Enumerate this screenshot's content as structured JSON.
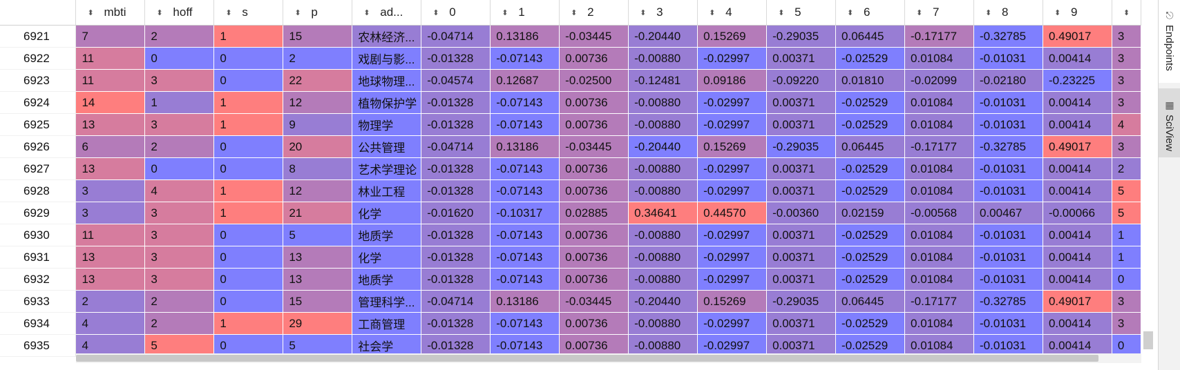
{
  "colors": {
    "red": "#fe7e7e",
    "pink": "#d67c9e",
    "mauve": "#b47bb9",
    "purple": "#987dd4",
    "blue": "#7f7ffe"
  },
  "columns": [
    "mbti",
    "hoff",
    "s",
    "p",
    "ad...",
    "0",
    "1",
    "2",
    "3",
    "4",
    "5",
    "6",
    "7",
    "8",
    "9",
    ""
  ],
  "rows": [
    {
      "index": "6921",
      "cells": [
        [
          "7",
          "mauve"
        ],
        [
          "2",
          "mauve"
        ],
        [
          "1",
          "red"
        ],
        [
          "15",
          "mauve"
        ],
        [
          "农林经济...",
          "purple"
        ],
        [
          "-0.04714",
          "purple"
        ],
        [
          "0.13186",
          "mauve"
        ],
        [
          "-0.03445",
          "mauve"
        ],
        [
          "-0.20440",
          "purple"
        ],
        [
          "0.15269",
          "mauve"
        ],
        [
          "-0.29035",
          "purple"
        ],
        [
          "0.06445",
          "purple"
        ],
        [
          "-0.17177",
          "mauve"
        ],
        [
          "-0.32785",
          "blue"
        ],
        [
          "0.49017",
          "red"
        ],
        [
          "3",
          "mauve"
        ]
      ]
    },
    {
      "index": "6922",
      "cells": [
        [
          "11",
          "pink"
        ],
        [
          "0",
          "blue"
        ],
        [
          "0",
          "blue"
        ],
        [
          "2",
          "blue"
        ],
        [
          "戏剧与影...",
          "blue"
        ],
        [
          "-0.01328",
          "purple"
        ],
        [
          "-0.07143",
          "blue"
        ],
        [
          "0.00736",
          "mauve"
        ],
        [
          "-0.00880",
          "purple"
        ],
        [
          "-0.02997",
          "blue"
        ],
        [
          "0.00371",
          "purple"
        ],
        [
          "-0.02529",
          "blue"
        ],
        [
          "0.01084",
          "purple"
        ],
        [
          "-0.01031",
          "blue"
        ],
        [
          "0.00414",
          "purple"
        ],
        [
          "3",
          "mauve"
        ]
      ]
    },
    {
      "index": "6923",
      "cells": [
        [
          "11",
          "pink"
        ],
        [
          "3",
          "pink"
        ],
        [
          "0",
          "blue"
        ],
        [
          "22",
          "pink"
        ],
        [
          "地球物理...",
          "blue"
        ],
        [
          "-0.04574",
          "purple"
        ],
        [
          "0.12687",
          "mauve"
        ],
        [
          "-0.02500",
          "mauve"
        ],
        [
          "-0.12481",
          "purple"
        ],
        [
          "0.09186",
          "mauve"
        ],
        [
          "-0.09220",
          "purple"
        ],
        [
          "0.01810",
          "purple"
        ],
        [
          "-0.02099",
          "purple"
        ],
        [
          "-0.02180",
          "purple"
        ],
        [
          "-0.23225",
          "blue"
        ],
        [
          "3",
          "mauve"
        ]
      ]
    },
    {
      "index": "6924",
      "cells": [
        [
          "14",
          "red"
        ],
        [
          "1",
          "purple"
        ],
        [
          "1",
          "red"
        ],
        [
          "12",
          "mauve"
        ],
        [
          "植物保护学",
          "blue"
        ],
        [
          "-0.01328",
          "purple"
        ],
        [
          "-0.07143",
          "blue"
        ],
        [
          "0.00736",
          "mauve"
        ],
        [
          "-0.00880",
          "purple"
        ],
        [
          "-0.02997",
          "blue"
        ],
        [
          "0.00371",
          "purple"
        ],
        [
          "-0.02529",
          "blue"
        ],
        [
          "0.01084",
          "purple"
        ],
        [
          "-0.01031",
          "blue"
        ],
        [
          "0.00414",
          "purple"
        ],
        [
          "3",
          "mauve"
        ]
      ]
    },
    {
      "index": "6925",
      "cells": [
        [
          "13",
          "pink"
        ],
        [
          "3",
          "pink"
        ],
        [
          "1",
          "red"
        ],
        [
          "9",
          "purple"
        ],
        [
          "物理学",
          "blue"
        ],
        [
          "-0.01328",
          "purple"
        ],
        [
          "-0.07143",
          "blue"
        ],
        [
          "0.00736",
          "mauve"
        ],
        [
          "-0.00880",
          "purple"
        ],
        [
          "-0.02997",
          "blue"
        ],
        [
          "0.00371",
          "purple"
        ],
        [
          "-0.02529",
          "blue"
        ],
        [
          "0.01084",
          "purple"
        ],
        [
          "-0.01031",
          "blue"
        ],
        [
          "0.00414",
          "purple"
        ],
        [
          "4",
          "pink"
        ]
      ]
    },
    {
      "index": "6926",
      "cells": [
        [
          "6",
          "mauve"
        ],
        [
          "2",
          "mauve"
        ],
        [
          "0",
          "blue"
        ],
        [
          "20",
          "pink"
        ],
        [
          "公共管理",
          "blue"
        ],
        [
          "-0.04714",
          "purple"
        ],
        [
          "0.13186",
          "mauve"
        ],
        [
          "-0.03445",
          "mauve"
        ],
        [
          "-0.20440",
          "blue"
        ],
        [
          "0.15269",
          "mauve"
        ],
        [
          "-0.29035",
          "blue"
        ],
        [
          "0.06445",
          "purple"
        ],
        [
          "-0.17177",
          "purple"
        ],
        [
          "-0.32785",
          "blue"
        ],
        [
          "0.49017",
          "red"
        ],
        [
          "3",
          "mauve"
        ]
      ]
    },
    {
      "index": "6927",
      "cells": [
        [
          "13",
          "pink"
        ],
        [
          "0",
          "blue"
        ],
        [
          "0",
          "blue"
        ],
        [
          "8",
          "purple"
        ],
        [
          "艺术学理论",
          "blue"
        ],
        [
          "-0.01328",
          "purple"
        ],
        [
          "-0.07143",
          "blue"
        ],
        [
          "0.00736",
          "mauve"
        ],
        [
          "-0.00880",
          "purple"
        ],
        [
          "-0.02997",
          "blue"
        ],
        [
          "0.00371",
          "purple"
        ],
        [
          "-0.02529",
          "blue"
        ],
        [
          "0.01084",
          "purple"
        ],
        [
          "-0.01031",
          "blue"
        ],
        [
          "0.00414",
          "purple"
        ],
        [
          "2",
          "purple"
        ]
      ]
    },
    {
      "index": "6928",
      "cells": [
        [
          "3",
          "purple"
        ],
        [
          "4",
          "pink"
        ],
        [
          "1",
          "red"
        ],
        [
          "12",
          "mauve"
        ],
        [
          "林业工程",
          "blue"
        ],
        [
          "-0.01328",
          "purple"
        ],
        [
          "-0.07143",
          "blue"
        ],
        [
          "0.00736",
          "mauve"
        ],
        [
          "-0.00880",
          "purple"
        ],
        [
          "-0.02997",
          "blue"
        ],
        [
          "0.00371",
          "purple"
        ],
        [
          "-0.02529",
          "blue"
        ],
        [
          "0.01084",
          "purple"
        ],
        [
          "-0.01031",
          "blue"
        ],
        [
          "0.00414",
          "purple"
        ],
        [
          "5",
          "red"
        ]
      ]
    },
    {
      "index": "6929",
      "cells": [
        [
          "3",
          "purple"
        ],
        [
          "3",
          "pink"
        ],
        [
          "1",
          "red"
        ],
        [
          "21",
          "pink"
        ],
        [
          "化学",
          "blue"
        ],
        [
          "-0.01620",
          "purple"
        ],
        [
          "-0.10317",
          "blue"
        ],
        [
          "0.02885",
          "mauve"
        ],
        [
          "0.34641",
          "red"
        ],
        [
          "0.44570",
          "red"
        ],
        [
          "-0.00360",
          "purple"
        ],
        [
          "0.02159",
          "purple"
        ],
        [
          "-0.00568",
          "purple"
        ],
        [
          "0.00467",
          "purple"
        ],
        [
          "-0.00066",
          "purple"
        ],
        [
          "5",
          "red"
        ]
      ]
    },
    {
      "index": "6930",
      "cells": [
        [
          "11",
          "pink"
        ],
        [
          "3",
          "pink"
        ],
        [
          "0",
          "blue"
        ],
        [
          "5",
          "blue"
        ],
        [
          "地质学",
          "blue"
        ],
        [
          "-0.01328",
          "purple"
        ],
        [
          "-0.07143",
          "blue"
        ],
        [
          "0.00736",
          "mauve"
        ],
        [
          "-0.00880",
          "purple"
        ],
        [
          "-0.02997",
          "blue"
        ],
        [
          "0.00371",
          "purple"
        ],
        [
          "-0.02529",
          "blue"
        ],
        [
          "0.01084",
          "purple"
        ],
        [
          "-0.01031",
          "blue"
        ],
        [
          "0.00414",
          "purple"
        ],
        [
          "1",
          "blue"
        ]
      ]
    },
    {
      "index": "6931",
      "cells": [
        [
          "13",
          "pink"
        ],
        [
          "3",
          "pink"
        ],
        [
          "0",
          "blue"
        ],
        [
          "13",
          "mauve"
        ],
        [
          "化学",
          "blue"
        ],
        [
          "-0.01328",
          "purple"
        ],
        [
          "-0.07143",
          "blue"
        ],
        [
          "0.00736",
          "mauve"
        ],
        [
          "-0.00880",
          "purple"
        ],
        [
          "-0.02997",
          "blue"
        ],
        [
          "0.00371",
          "purple"
        ],
        [
          "-0.02529",
          "blue"
        ],
        [
          "0.01084",
          "purple"
        ],
        [
          "-0.01031",
          "blue"
        ],
        [
          "0.00414",
          "purple"
        ],
        [
          "1",
          "blue"
        ]
      ]
    },
    {
      "index": "6932",
      "cells": [
        [
          "13",
          "pink"
        ],
        [
          "3",
          "pink"
        ],
        [
          "0",
          "blue"
        ],
        [
          "13",
          "mauve"
        ],
        [
          "地质学",
          "blue"
        ],
        [
          "-0.01328",
          "purple"
        ],
        [
          "-0.07143",
          "blue"
        ],
        [
          "0.00736",
          "mauve"
        ],
        [
          "-0.00880",
          "purple"
        ],
        [
          "-0.02997",
          "blue"
        ],
        [
          "0.00371",
          "purple"
        ],
        [
          "-0.02529",
          "blue"
        ],
        [
          "0.01084",
          "purple"
        ],
        [
          "-0.01031",
          "blue"
        ],
        [
          "0.00414",
          "purple"
        ],
        [
          "0",
          "blue"
        ]
      ]
    },
    {
      "index": "6933",
      "cells": [
        [
          "2",
          "purple"
        ],
        [
          "2",
          "mauve"
        ],
        [
          "0",
          "blue"
        ],
        [
          "15",
          "mauve"
        ],
        [
          "管理科学...",
          "blue"
        ],
        [
          "-0.04714",
          "purple"
        ],
        [
          "0.13186",
          "mauve"
        ],
        [
          "-0.03445",
          "mauve"
        ],
        [
          "-0.20440",
          "purple"
        ],
        [
          "0.15269",
          "mauve"
        ],
        [
          "-0.29035",
          "purple"
        ],
        [
          "0.06445",
          "purple"
        ],
        [
          "-0.17177",
          "purple"
        ],
        [
          "-0.32785",
          "blue"
        ],
        [
          "0.49017",
          "red"
        ],
        [
          "3",
          "mauve"
        ]
      ]
    },
    {
      "index": "6934",
      "cells": [
        [
          "4",
          "purple"
        ],
        [
          "2",
          "mauve"
        ],
        [
          "1",
          "red"
        ],
        [
          "29",
          "red"
        ],
        [
          "工商管理",
          "blue"
        ],
        [
          "-0.01328",
          "purple"
        ],
        [
          "-0.07143",
          "blue"
        ],
        [
          "0.00736",
          "mauve"
        ],
        [
          "-0.00880",
          "purple"
        ],
        [
          "-0.02997",
          "blue"
        ],
        [
          "0.00371",
          "purple"
        ],
        [
          "-0.02529",
          "blue"
        ],
        [
          "0.01084",
          "purple"
        ],
        [
          "-0.01031",
          "blue"
        ],
        [
          "0.00414",
          "purple"
        ],
        [
          "3",
          "mauve"
        ]
      ]
    },
    {
      "index": "6935",
      "cells": [
        [
          "4",
          "purple"
        ],
        [
          "5",
          "red"
        ],
        [
          "0",
          "blue"
        ],
        [
          "5",
          "blue"
        ],
        [
          "社会学",
          "blue"
        ],
        [
          "-0.01328",
          "purple"
        ],
        [
          "-0.07143",
          "blue"
        ],
        [
          "0.00736",
          "mauve"
        ],
        [
          "-0.00880",
          "purple"
        ],
        [
          "-0.02997",
          "blue"
        ],
        [
          "0.00371",
          "purple"
        ],
        [
          "-0.02529",
          "blue"
        ],
        [
          "0.01084",
          "purple"
        ],
        [
          "-0.01031",
          "blue"
        ],
        [
          "0.00414",
          "purple"
        ],
        [
          "0",
          "blue"
        ]
      ]
    }
  ],
  "sidebar": {
    "tab_endpoints": "Endpoints",
    "tab_sciview": "SciView"
  }
}
